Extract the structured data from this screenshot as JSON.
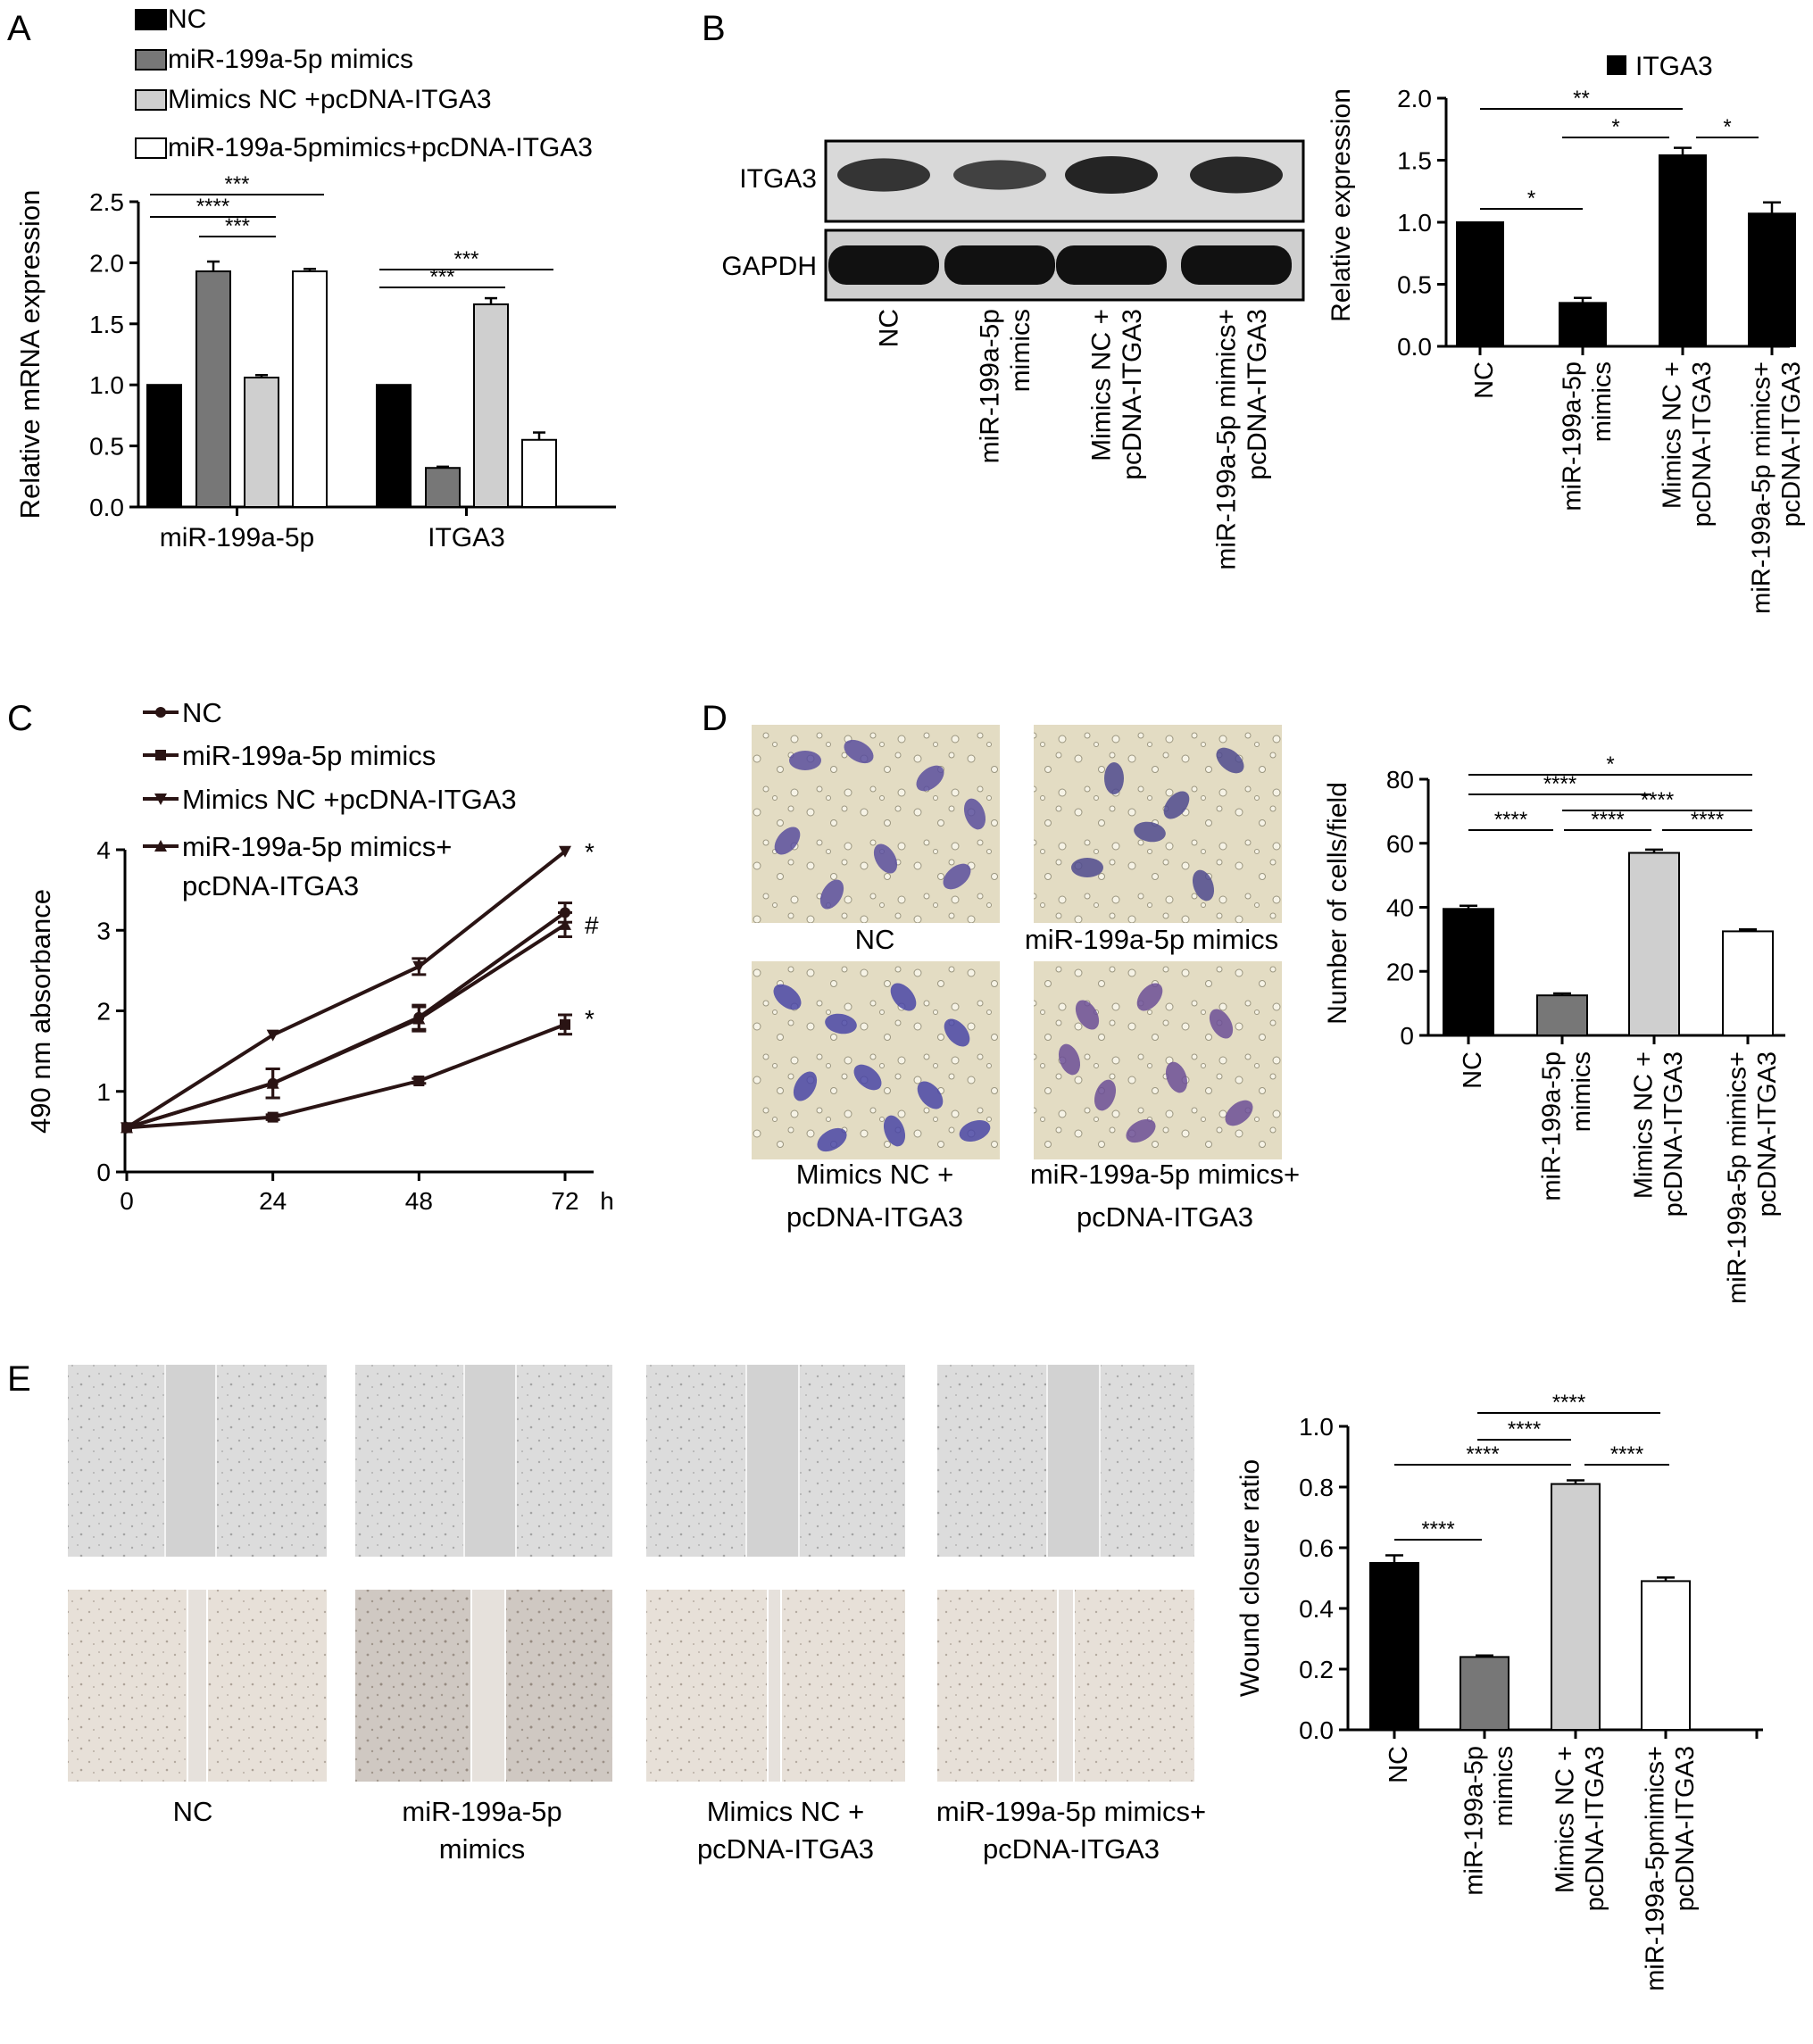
{
  "panel_labels": [
    "A",
    "B",
    "C",
    "D",
    "E"
  ],
  "colors": {
    "black": "#000000",
    "dark_gray": "#777777",
    "light_gray": "#cfcfcf",
    "white": "#ffffff",
    "line": "#2a1414"
  },
  "western_blot": {
    "rows": [
      "ITGA3",
      "GAPDH"
    ],
    "lanes": [
      "NC",
      "miR-199a-5p\nmimics",
      "Mimics NC +\npcDNA-ITGA3",
      "miR-199a-5p mimics+\npcDNA-ITGA3"
    ],
    "band_intensity_itga3": [
      0.72,
      0.55,
      0.92,
      0.88
    ],
    "band_intensity_gapdh": [
      1.0,
      1.0,
      1.0,
      1.0
    ]
  },
  "micrographs_D": {
    "captions": [
      "NC",
      "miR-199a-5p mimics",
      "Mimics NC +\npcDNA-ITGA3",
      "miR-199a-5p mimics+\npcDNA-ITGA3"
    ]
  },
  "micrographs_E": {
    "captions": [
      "NC",
      "miR-199a-5p\nmimics",
      "Mimics NC +\npcDNA-ITGA3",
      "miR-199a-5p mimics+\npcDNA-ITGA3"
    ]
  },
  "chart_data": [
    {
      "panel": "A",
      "type": "bar",
      "categories": [
        "miR-199a-5p",
        "ITGA3"
      ],
      "series": [
        {
          "name": "NC",
          "values": [
            1.0,
            1.0
          ],
          "errors": [
            0,
            0
          ],
          "color": "#000000"
        },
        {
          "name": "miR-199a-5p mimics",
          "values": [
            1.93,
            0.32
          ],
          "errors": [
            0.08,
            0.01
          ],
          "color": "#777777"
        },
        {
          "name": "Mimics NC +pcDNA-ITGA3",
          "values": [
            1.06,
            1.66
          ],
          "errors": [
            0.02,
            0.05
          ],
          "color": "#cfcfcf"
        },
        {
          "name": "miR-199a-5pmimics+pcDNA-ITGA3",
          "values": [
            1.93,
            0.55
          ],
          "errors": [
            0.02,
            0.06
          ],
          "color": "#ffffff"
        }
      ],
      "ylabel": "Relative mRNA expression",
      "ylim": [
        0,
        2.5
      ],
      "yticks": [
        "0.0",
        "0.5",
        "1.0",
        "1.5",
        "2.0",
        "2.5"
      ],
      "significance": [
        {
          "group": 0,
          "from": 0,
          "to": 3,
          "label": "***"
        },
        {
          "group": 0,
          "from": 0,
          "to": 2,
          "label": "****"
        },
        {
          "group": 0,
          "from": 1,
          "to": 2,
          "label": "***"
        },
        {
          "group": 1,
          "from": 0,
          "to": 3,
          "label": "***"
        },
        {
          "group": 1,
          "from": 0,
          "to": 2,
          "label": "***"
        }
      ]
    },
    {
      "panel": "B",
      "type": "bar",
      "categories": [
        "NC",
        "miR-199a-5p\nmimics",
        "Mimics NC +\npcDNA-ITGA3",
        "miR-199a-5p mimics+\npcDNA-ITGA3"
      ],
      "values": [
        1.0,
        0.35,
        1.54,
        1.07
      ],
      "errors": [
        0,
        0.04,
        0.06,
        0.09
      ],
      "colors": [
        "#000000",
        "#000000",
        "#000000",
        "#000000"
      ],
      "legend": [
        "ITGA3"
      ],
      "ylabel": "Relative expression",
      "ylim": [
        0,
        2.0
      ],
      "yticks": [
        "0.0",
        "0.5",
        "1.0",
        "1.5",
        "2.0"
      ],
      "significance": [
        {
          "from": 0,
          "to": 2,
          "label": "**"
        },
        {
          "from": 1,
          "to": 2,
          "label": "*"
        },
        {
          "from": 2,
          "to": 3,
          "label": "*"
        },
        {
          "from": 0,
          "to": 1,
          "label": "*"
        }
      ]
    },
    {
      "panel": "C",
      "type": "line",
      "x": [
        0,
        24,
        48,
        72
      ],
      "series": [
        {
          "name": "NC",
          "marker": "circle",
          "values": [
            0.55,
            1.1,
            1.92,
            3.22
          ],
          "errors": [
            0.02,
            0.18,
            0.15,
            0.12
          ]
        },
        {
          "name": "miR-199a-5p mimics",
          "marker": "square",
          "values": [
            0.55,
            0.68,
            1.13,
            1.83
          ],
          "errors": [
            0.02,
            0.03,
            0.03,
            0.12
          ]
        },
        {
          "name": "Mimics NC +pcDNA-ITGA3",
          "marker": "triangle-down",
          "values": [
            0.55,
            1.7,
            2.55,
            3.98
          ],
          "errors": [
            0.02,
            0.02,
            0.1,
            0.02
          ]
        },
        {
          "name": "miR-199a-5p mimics+\npcDNA-ITGA3",
          "marker": "triangle-up",
          "values": [
            0.55,
            1.1,
            1.9,
            3.07
          ],
          "errors": [
            0.02,
            0.18,
            0.15,
            0.15
          ]
        }
      ],
      "end_labels": [
        "*",
        "#",
        "*"
      ],
      "ylabel": "490 nm absorbance",
      "xunit": "h",
      "ylim": [
        0,
        4
      ],
      "yticks": [
        "0",
        "1",
        "2",
        "3",
        "4"
      ],
      "xticks": [
        "0",
        "24",
        "48",
        "72"
      ]
    },
    {
      "panel": "D",
      "type": "bar",
      "categories": [
        "NC",
        "miR-199a-5p\nmimics",
        "Mimics NC +\npcDNA-ITGA3",
        "miR-199a-5p mimics+\npcDNA-ITGA3"
      ],
      "values": [
        39.5,
        12.5,
        57.0,
        32.5
      ],
      "errors": [
        1.0,
        0.6,
        1.0,
        0.6
      ],
      "colors": [
        "#000000",
        "#777777",
        "#cfcfcf",
        "#ffffff"
      ],
      "ylabel": "Number of cells/field",
      "ylim": [
        0,
        80
      ],
      "yticks": [
        "0",
        "20",
        "40",
        "60",
        "80"
      ],
      "significance": [
        {
          "from": 0,
          "to": 3,
          "label": "*"
        },
        {
          "from": 0,
          "to": 2,
          "label": "****"
        },
        {
          "from": 1,
          "to": 3,
          "label": "****"
        },
        {
          "from": 0,
          "to": 1,
          "label": "****"
        },
        {
          "from": 1,
          "to": 2,
          "label": "****"
        },
        {
          "from": 2,
          "to": 3,
          "label": "****"
        }
      ]
    },
    {
      "panel": "E",
      "type": "bar",
      "categories": [
        "NC",
        "miR-199a-5p\nmimics",
        "Mimics NC +\npcDNA-ITGA3",
        "miR-199a-5pmimics+\npcDNA-ITGA3"
      ],
      "values": [
        0.55,
        0.24,
        0.81,
        0.49
      ],
      "errors": [
        0.025,
        0.005,
        0.012,
        0.012
      ],
      "colors": [
        "#000000",
        "#777777",
        "#cfcfcf",
        "#ffffff"
      ],
      "ylabel": "Wound closure ratio",
      "ylim": [
        0,
        1.0
      ],
      "yticks": [
        "0.0",
        "0.2",
        "0.4",
        "0.6",
        "0.8",
        "1.0"
      ],
      "significance": [
        {
          "from": 1,
          "to": 3,
          "label": "****"
        },
        {
          "from": 1,
          "to": 2,
          "label": "****"
        },
        {
          "from": 0,
          "to": 2,
          "label": "****"
        },
        {
          "from": 2,
          "to": 3,
          "label": "****"
        },
        {
          "from": 0,
          "to": 1,
          "label": "****"
        }
      ]
    }
  ]
}
